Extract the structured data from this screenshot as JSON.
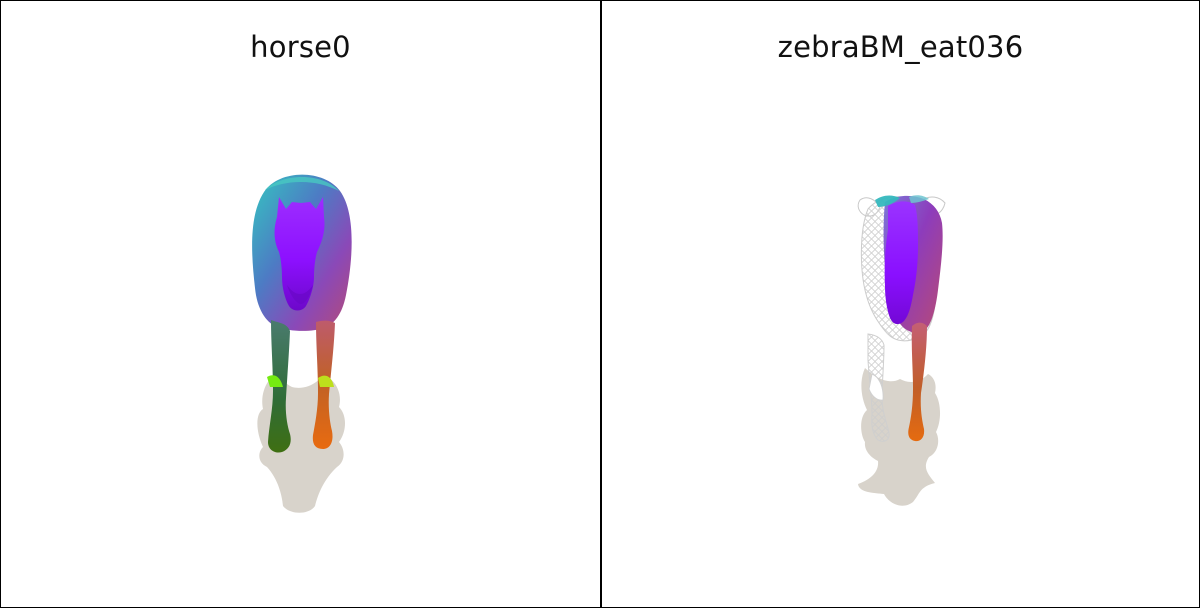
{
  "panels": [
    {
      "title": "horse0",
      "subject": "horse-mesh"
    },
    {
      "title": "zebraBM_eat036",
      "subject": "zebra-mesh"
    }
  ],
  "colors": {
    "background": "#ffffff",
    "border": "#000000",
    "shadow": "#d8d3cb",
    "head": "#8c10ff",
    "body_teal": "#39b8b7",
    "body_magenta": "#b64ab1",
    "left_leg": "#44753d",
    "right_leg": "#e46d14",
    "hoof_green": "#71e80f",
    "wireframe": "#d8d8d8"
  }
}
